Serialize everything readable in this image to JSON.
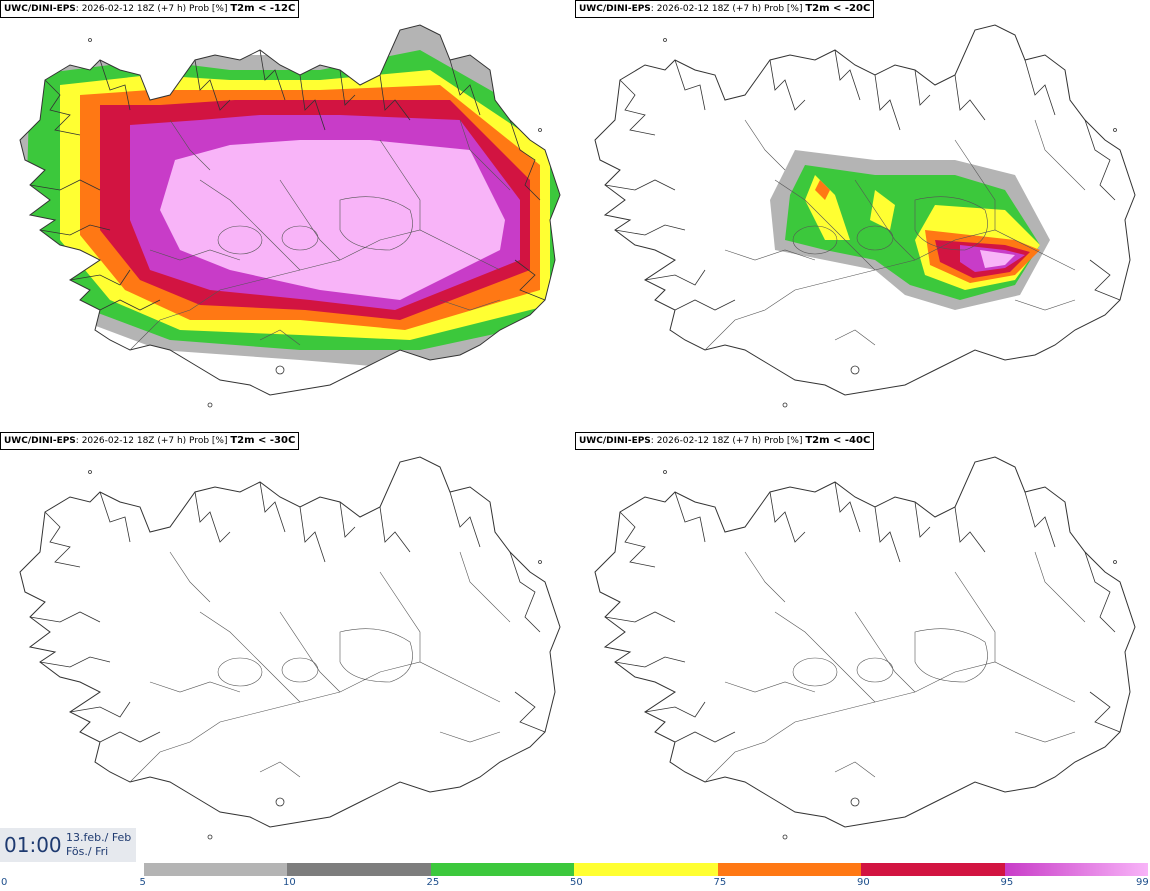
{
  "panels": [
    {
      "model": "UWC/DINI-EPS",
      "info": ": 2026-02-12 18Z (+7 h) Prob [%] ",
      "threshold": "T2m < -12C"
    },
    {
      "model": "UWC/DINI-EPS",
      "info": ": 2026-02-12 18Z (+7 h) Prob [%] ",
      "threshold": "T2m < -20C"
    },
    {
      "model": "UWC/DINI-EPS",
      "info": ": 2026-02-12 18Z (+7 h) Prob [%] ",
      "threshold": "T2m < -30C"
    },
    {
      "model": "UWC/DINI-EPS",
      "info": ": 2026-02-12 18Z (+7 h) Prob [%] ",
      "threshold": "T2m < -40C"
    }
  ],
  "time_display": {
    "time": "01:00",
    "date_line1": "13.feb./ Feb",
    "date_line2": "Fös./ Fri"
  },
  "legend": {
    "ticks": [
      "0",
      "5",
      "10",
      "25",
      "50",
      "75",
      "90",
      "95",
      "99"
    ],
    "colors": [
      "#ffffff",
      "#b4b4b4",
      "#7d7d7d",
      "#3cc83c",
      "#ffff32",
      "#ff7814",
      "#d21441",
      "#c83cc8",
      "#f8b4f8"
    ]
  }
}
